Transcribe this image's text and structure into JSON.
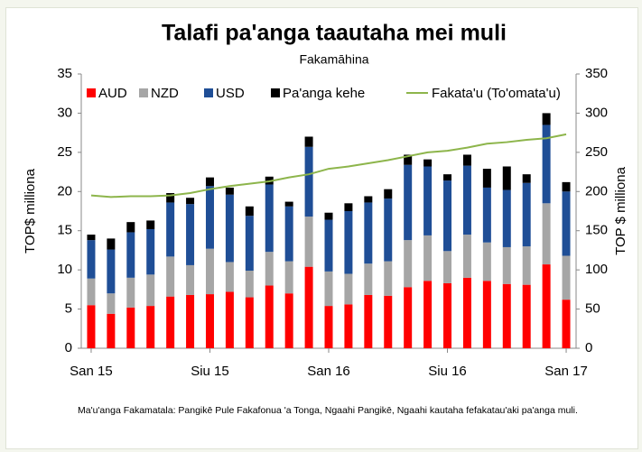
{
  "chart_data": {
    "type": "bar",
    "stacked": true,
    "title": "Talafi pa'anga taautaha mei muli",
    "subtitle": "Fakamāhina",
    "y_label": "TOP$ milliona",
    "y2_label": "TOP $ milliona",
    "source": "Ma'u'anga Fakamatala: Pangikē Pule Fakafonua 'a Tonga, Ngaahi Pangikē, Ngaahi kautaha fefakatau'aki pa'anga muli.",
    "categories": [
      "San 15",
      null,
      null,
      null,
      null,
      null,
      "Siu 15",
      null,
      null,
      null,
      null,
      null,
      "San 16",
      null,
      null,
      null,
      null,
      null,
      "Siu 16",
      null,
      null,
      null,
      null,
      null,
      "San 17"
    ],
    "series": [
      {
        "name": "AUD",
        "color": "#ff0000",
        "values": [
          5.5,
          4.4,
          5.2,
          5.4,
          6.6,
          6.8,
          6.9,
          7.2,
          6.5,
          8.0,
          7.0,
          10.4,
          5.4,
          5.6,
          6.8,
          6.7,
          7.8,
          8.6,
          8.3,
          9.0,
          8.6,
          8.2,
          8.1,
          10.7,
          6.2
        ]
      },
      {
        "name": "NZD",
        "color": "#a6a6a6",
        "values": [
          3.4,
          2.6,
          3.8,
          4.0,
          5.1,
          3.8,
          5.8,
          3.8,
          3.4,
          4.3,
          4.1,
          6.4,
          4.4,
          3.9,
          4.0,
          4.4,
          6.0,
          5.8,
          4.1,
          5.5,
          4.9,
          4.7,
          4.9,
          7.8,
          5.6
        ]
      },
      {
        "name": "USD",
        "color": "#1f4e96",
        "values": [
          4.9,
          5.6,
          5.8,
          5.8,
          6.9,
          7.8,
          8.0,
          8.6,
          7.0,
          8.6,
          7.0,
          8.9,
          6.6,
          8.0,
          7.8,
          8.0,
          9.6,
          8.8,
          9.0,
          8.8,
          7.0,
          7.3,
          8.1,
          10.0,
          8.2
        ]
      },
      {
        "name": "Pa'anga kehe",
        "color": "#000000",
        "values": [
          0.7,
          1.4,
          1.3,
          1.1,
          1.2,
          0.8,
          1.1,
          0.9,
          1.2,
          1.0,
          0.6,
          1.3,
          0.9,
          1.0,
          0.8,
          1.2,
          1.3,
          0.9,
          0.8,
          1.4,
          2.4,
          3.0,
          1.1,
          1.5,
          1.2
        ]
      },
      {
        "name": "Fakata'u (To'omata'u)",
        "color": "#8db54b",
        "type": "line",
        "axis": "y2",
        "values": [
          195,
          193,
          194,
          194,
          195,
          198,
          203,
          207,
          210,
          213,
          218,
          222,
          229,
          232,
          236,
          240,
          245,
          250,
          252,
          256,
          261,
          263,
          266,
          268,
          273
        ]
      }
    ],
    "ylim": [
      0,
      35
    ],
    "yticks": [
      0,
      5,
      10,
      15,
      20,
      25,
      30,
      35
    ],
    "y2lim": [
      0,
      350
    ],
    "y2ticks": [
      0,
      50,
      100,
      150,
      200,
      250,
      300,
      350
    ],
    "legend": "top",
    "grid": false
  }
}
